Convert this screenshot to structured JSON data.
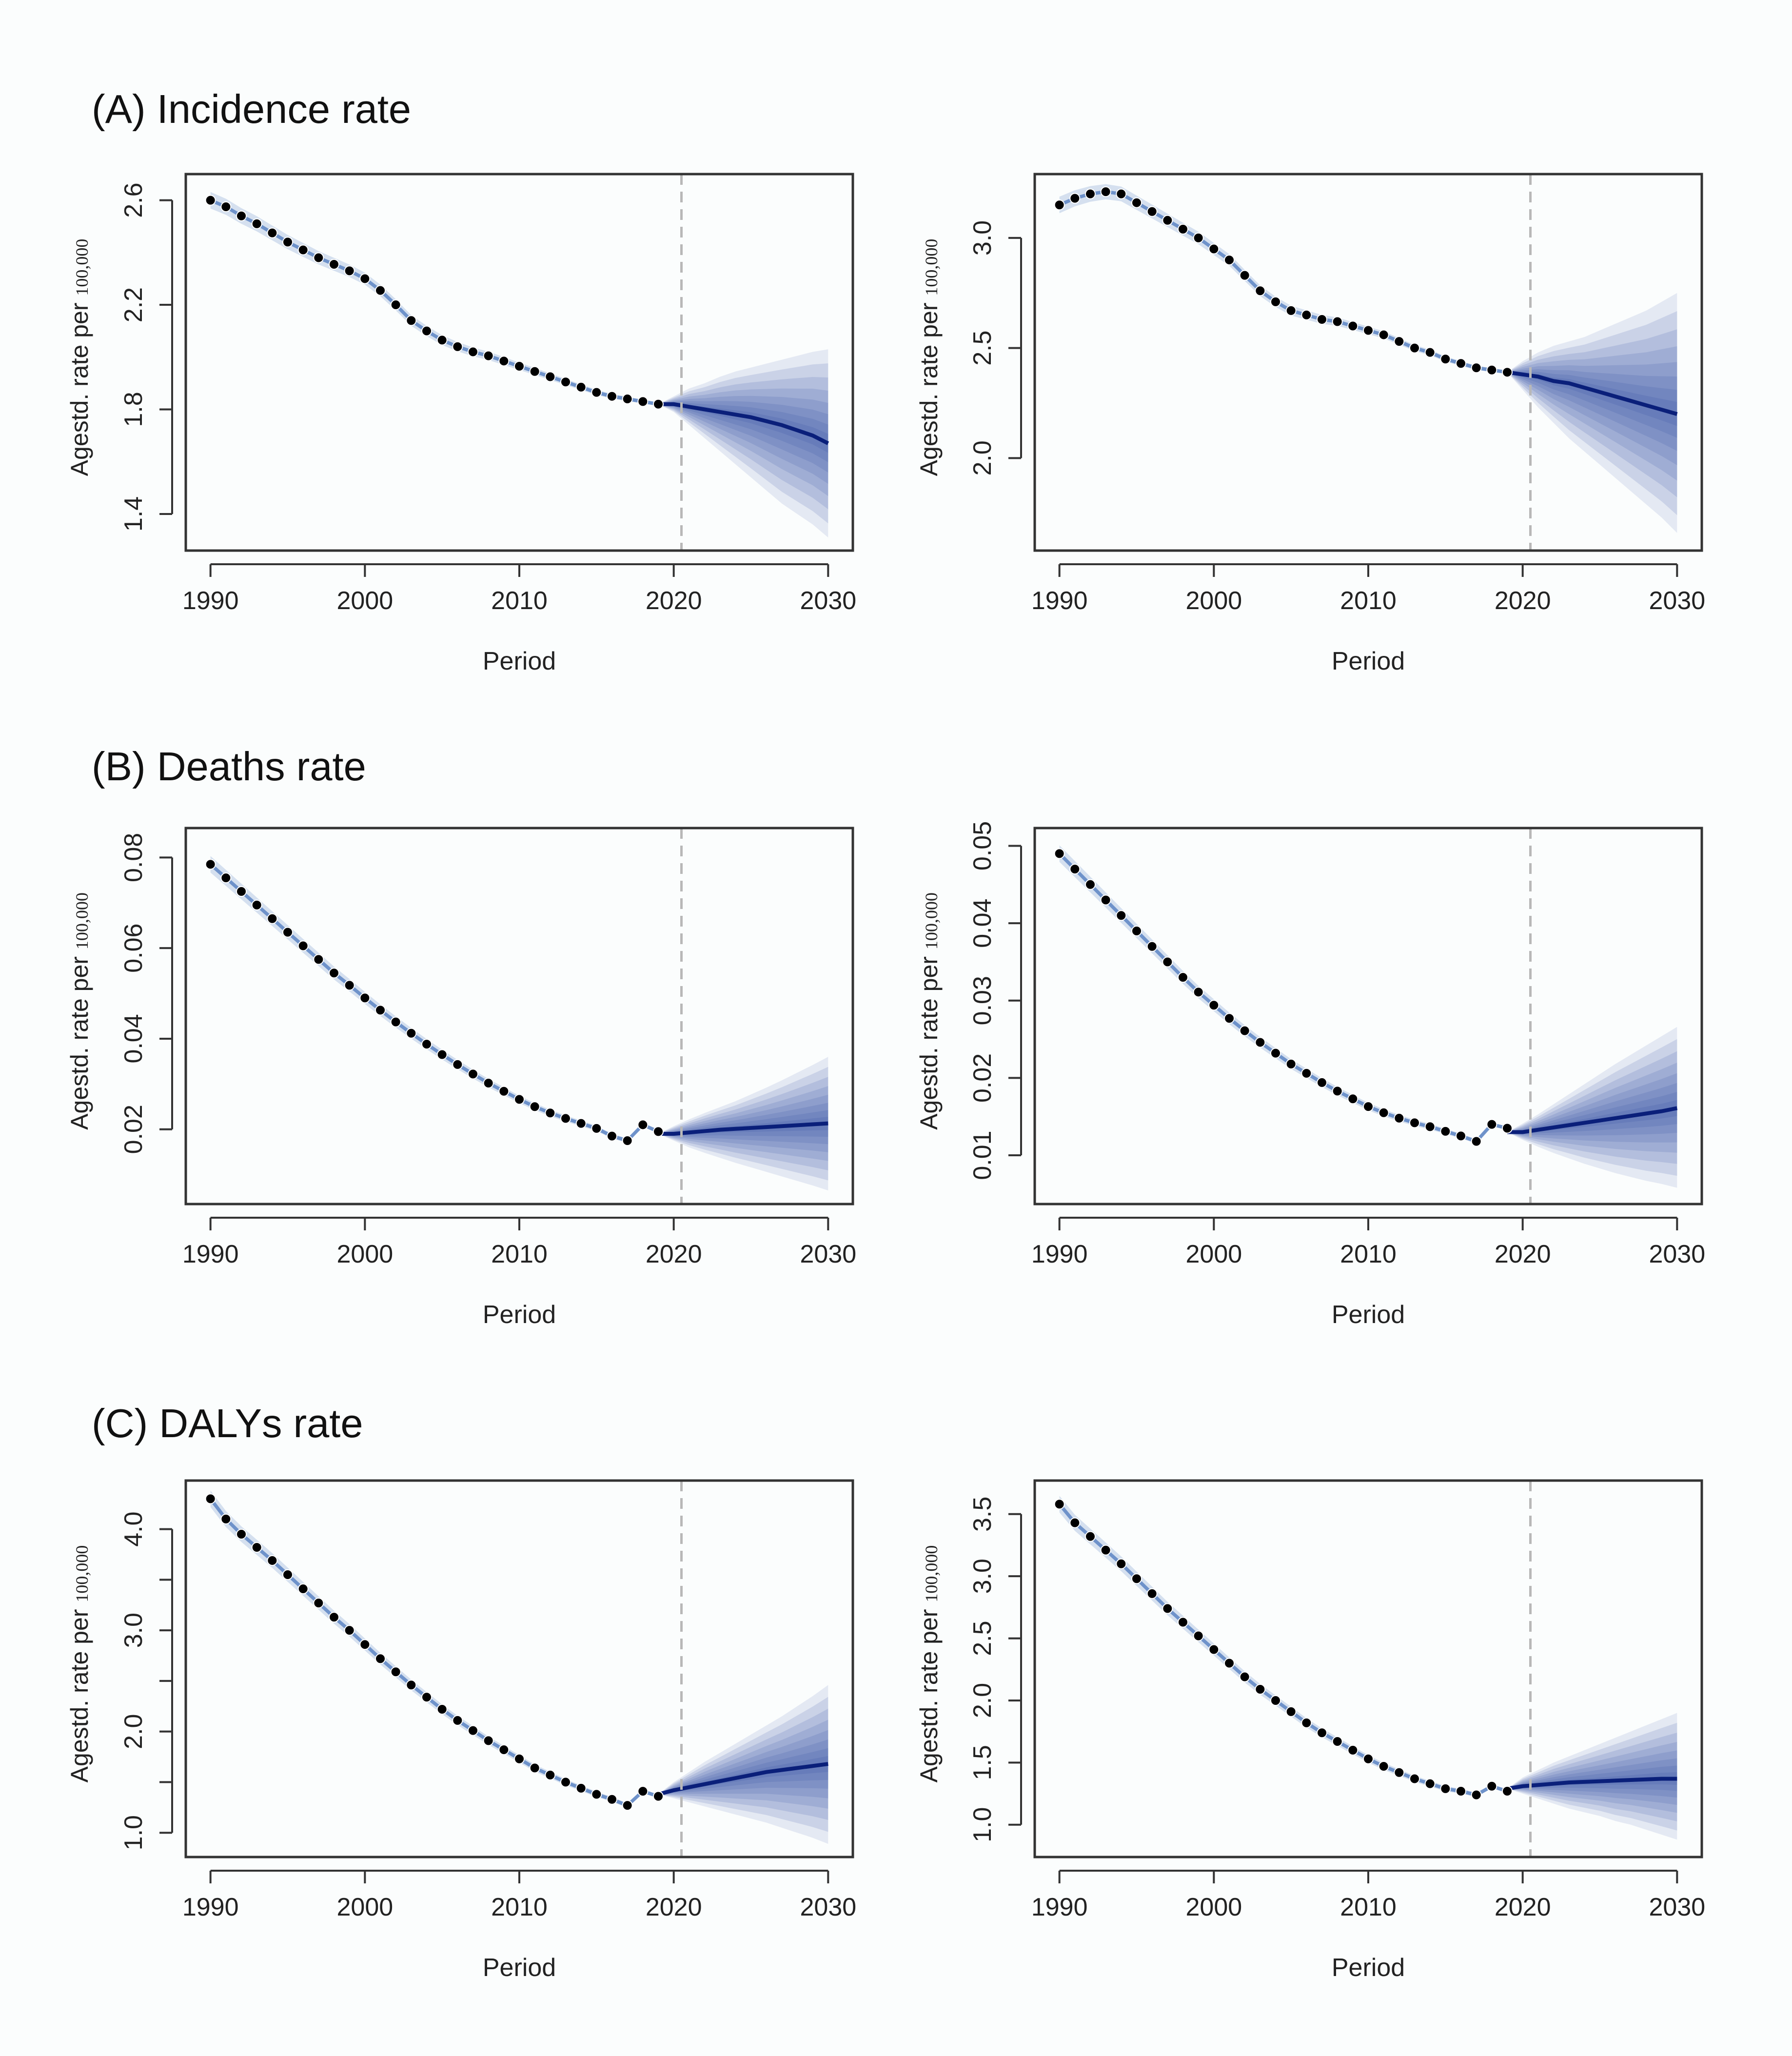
{
  "sections": [
    {
      "title": "(A) Incidence rate"
    },
    {
      "title": "(B) Deaths rate"
    },
    {
      "title": "(C) DALYs rate"
    }
  ],
  "colors": {
    "observed": "#000000",
    "fitted": "#2a5db0",
    "prediction": "#0a1f7a",
    "fan": "#1c3f9a",
    "divider": "#b8b8b8",
    "frame": "#333333"
  },
  "chart_data": [
    {
      "type": "line",
      "panel": "A-left",
      "title": "",
      "xlabel": "Period",
      "ylabel": "Agestd. rate per",
      "ylabel_unit": "100,000",
      "xlim": [
        1988.4,
        2031.6
      ],
      "ylim": [
        1.26,
        2.7
      ],
      "xticks": [
        1990,
        2000,
        2010,
        2020,
        2030
      ],
      "xtick_labels": [
        "1990",
        "2000",
        "2010",
        "2020",
        "2030"
      ],
      "yticks": [
        1.4,
        1.8,
        2.2,
        2.6
      ],
      "ytick_labels": [
        "1.4",
        "1.8",
        "2.2",
        "2.6"
      ],
      "divider_x": 2020.5,
      "observed": {
        "x": [
          1990,
          1991,
          1992,
          1993,
          1994,
          1995,
          1996,
          1997,
          1998,
          1999,
          2000,
          2001,
          2002,
          2003,
          2004,
          2005,
          2006,
          2007,
          2008,
          2009,
          2010,
          2011,
          2012,
          2013,
          2014,
          2015,
          2016,
          2017,
          2018,
          2019
        ],
        "y": [
          2.6,
          2.575,
          2.54,
          2.51,
          2.475,
          2.44,
          2.41,
          2.38,
          2.355,
          2.33,
          2.3,
          2.255,
          2.2,
          2.14,
          2.1,
          2.065,
          2.04,
          2.02,
          2.005,
          1.985,
          1.965,
          1.945,
          1.925,
          1.905,
          1.885,
          1.865,
          1.85,
          1.84,
          1.83,
          1.82
        ]
      },
      "forecast": {
        "x": [
          2019,
          2020,
          2021,
          2022,
          2023,
          2024,
          2025,
          2026,
          2027,
          2028,
          2029,
          2030
        ],
        "mean": [
          1.82,
          1.82,
          1.81,
          1.8,
          1.79,
          1.78,
          1.77,
          1.755,
          1.74,
          1.72,
          1.7,
          1.67
        ],
        "lower": [
          1.82,
          1.79,
          1.74,
          1.69,
          1.64,
          1.59,
          1.54,
          1.49,
          1.44,
          1.4,
          1.36,
          1.31
        ],
        "upper": [
          1.82,
          1.85,
          1.88,
          1.9,
          1.925,
          1.945,
          1.96,
          1.975,
          1.99,
          2.005,
          2.02,
          2.03
        ]
      }
    },
    {
      "type": "line",
      "panel": "A-right",
      "title": "",
      "xlabel": "Period",
      "ylabel": "Agestd. rate per",
      "ylabel_unit": "100,000",
      "xlim": [
        1988.4,
        2031.6
      ],
      "ylim": [
        1.58,
        3.29
      ],
      "xticks": [
        1990,
        2000,
        2010,
        2020,
        2030
      ],
      "xtick_labels": [
        "1990",
        "2000",
        "2010",
        "2020",
        "2030"
      ],
      "yticks": [
        2.0,
        2.5,
        3.0
      ],
      "ytick_labels": [
        "2.0",
        "2.5",
        "3.0"
      ],
      "divider_x": 2020.5,
      "observed": {
        "x": [
          1990,
          1991,
          1992,
          1993,
          1994,
          1995,
          1996,
          1997,
          1998,
          1999,
          2000,
          2001,
          2002,
          2003,
          2004,
          2005,
          2006,
          2007,
          2008,
          2009,
          2010,
          2011,
          2012,
          2013,
          2014,
          2015,
          2016,
          2017,
          2018,
          2019
        ],
        "y": [
          3.15,
          3.18,
          3.2,
          3.21,
          3.2,
          3.16,
          3.12,
          3.08,
          3.04,
          3.0,
          2.95,
          2.9,
          2.83,
          2.76,
          2.71,
          2.67,
          2.65,
          2.63,
          2.62,
          2.6,
          2.58,
          2.56,
          2.53,
          2.5,
          2.48,
          2.45,
          2.43,
          2.41,
          2.4,
          2.39
        ]
      },
      "forecast": {
        "x": [
          2019,
          2020,
          2021,
          2022,
          2023,
          2024,
          2025,
          2026,
          2027,
          2028,
          2029,
          2030
        ],
        "mean": [
          2.39,
          2.38,
          2.37,
          2.35,
          2.34,
          2.32,
          2.3,
          2.28,
          2.26,
          2.24,
          2.22,
          2.2
        ],
        "lower": [
          2.39,
          2.31,
          2.23,
          2.16,
          2.09,
          2.03,
          1.97,
          1.91,
          1.85,
          1.79,
          1.73,
          1.66
        ],
        "upper": [
          2.39,
          2.44,
          2.48,
          2.51,
          2.53,
          2.55,
          2.58,
          2.61,
          2.64,
          2.67,
          2.71,
          2.75
        ]
      }
    },
    {
      "type": "line",
      "panel": "B-left",
      "title": "",
      "xlabel": "Period",
      "ylabel": "Agestd. rate per",
      "ylabel_unit": "100,000",
      "xlim": [
        1988.4,
        2031.6
      ],
      "ylim": [
        0.0035,
        0.0865
      ],
      "xticks": [
        1990,
        2000,
        2010,
        2020,
        2030
      ],
      "xtick_labels": [
        "1990",
        "2000",
        "2010",
        "2020",
        "2030"
      ],
      "yticks": [
        0.02,
        0.04,
        0.06,
        0.08
      ],
      "ytick_labels": [
        "0.02",
        "0.04",
        "0.06",
        "0.08"
      ],
      "divider_x": 2020.5,
      "observed": {
        "x": [
          1990,
          1991,
          1992,
          1993,
          1994,
          1995,
          1996,
          1997,
          1998,
          1999,
          2000,
          2001,
          2002,
          2003,
          2004,
          2005,
          2006,
          2007,
          2008,
          2009,
          2010,
          2011,
          2012,
          2013,
          2014,
          2015,
          2016,
          2017,
          2018,
          2019
        ],
        "y": [
          0.0785,
          0.0755,
          0.0725,
          0.0695,
          0.0665,
          0.0635,
          0.0605,
          0.0575,
          0.0545,
          0.0518,
          0.049,
          0.0463,
          0.0437,
          0.0412,
          0.0388,
          0.0365,
          0.0343,
          0.0322,
          0.0302,
          0.0284,
          0.0266,
          0.025,
          0.0236,
          0.0224,
          0.0213,
          0.0202,
          0.0185,
          0.0175,
          0.021,
          0.0195
        ]
      },
      "forecast": {
        "x": [
          2019,
          2020,
          2021,
          2022,
          2023,
          2024,
          2025,
          2026,
          2027,
          2028,
          2029,
          2030
        ],
        "mean": [
          0.019,
          0.019,
          0.0193,
          0.0196,
          0.0199,
          0.0201,
          0.0203,
          0.0205,
          0.0207,
          0.0209,
          0.0211,
          0.0213
        ],
        "lower": [
          0.019,
          0.0175,
          0.016,
          0.0148,
          0.0137,
          0.0126,
          0.0116,
          0.0106,
          0.0096,
          0.0086,
          0.0076,
          0.0065
        ],
        "upper": [
          0.019,
          0.0207,
          0.0222,
          0.0236,
          0.0249,
          0.0262,
          0.0277,
          0.0292,
          0.0308,
          0.0325,
          0.0342,
          0.036
        ]
      }
    },
    {
      "type": "line",
      "panel": "B-right",
      "title": "",
      "xlabel": "Period",
      "ylabel": "Agestd. rate per",
      "ylabel_unit": "100,000",
      "xlim": [
        1988.4,
        2031.6
      ],
      "ylim": [
        0.0037,
        0.0523
      ],
      "xticks": [
        1990,
        2000,
        2010,
        2020,
        2030
      ],
      "xtick_labels": [
        "1990",
        "2000",
        "2010",
        "2020",
        "2030"
      ],
      "yticks": [
        0.01,
        0.02,
        0.03,
        0.04,
        0.05
      ],
      "ytick_labels": [
        "0.01",
        "0.02",
        "0.03",
        "0.04",
        "0.05"
      ],
      "divider_x": 2020.5,
      "observed": {
        "x": [
          1990,
          1991,
          1992,
          1993,
          1994,
          1995,
          1996,
          1997,
          1998,
          1999,
          2000,
          2001,
          2002,
          2003,
          2004,
          2005,
          2006,
          2007,
          2008,
          2009,
          2010,
          2011,
          2012,
          2013,
          2014,
          2015,
          2016,
          2017,
          2018,
          2019
        ],
        "y": [
          0.049,
          0.047,
          0.045,
          0.043,
          0.041,
          0.039,
          0.037,
          0.035,
          0.033,
          0.0311,
          0.0294,
          0.0277,
          0.0261,
          0.0246,
          0.0232,
          0.0218,
          0.0206,
          0.0194,
          0.0183,
          0.0173,
          0.0163,
          0.0155,
          0.0148,
          0.0142,
          0.0137,
          0.0131,
          0.0125,
          0.0118,
          0.014,
          0.0135
        ]
      },
      "forecast": {
        "x": [
          2019,
          2020,
          2021,
          2022,
          2023,
          2024,
          2025,
          2026,
          2027,
          2028,
          2029,
          2030
        ],
        "mean": [
          0.013,
          0.013,
          0.0133,
          0.0136,
          0.0139,
          0.0142,
          0.0145,
          0.0148,
          0.0151,
          0.0154,
          0.0157,
          0.0161
        ],
        "lower": [
          0.013,
          0.012,
          0.0111,
          0.0103,
          0.0096,
          0.0089,
          0.0083,
          0.0077,
          0.0072,
          0.0067,
          0.0063,
          0.0058
        ],
        "upper": [
          0.013,
          0.0141,
          0.0153,
          0.0166,
          0.0179,
          0.0192,
          0.0205,
          0.0218,
          0.023,
          0.0242,
          0.0254,
          0.0266
        ]
      }
    },
    {
      "type": "line",
      "panel": "C-left",
      "title": "",
      "xlabel": "Period",
      "ylabel": "Agestd. rate per",
      "ylabel_unit": "100,000",
      "xlim": [
        1988.4,
        2031.6
      ],
      "ylim": [
        0.76,
        4.48
      ],
      "xticks": [
        1990,
        2000,
        2010,
        2020,
        2030
      ],
      "xtick_labels": [
        "1990",
        "2000",
        "2010",
        "2020",
        "2030"
      ],
      "yticks": [
        1.0,
        1.5,
        2.0,
        2.5,
        3.0,
        3.5,
        4.0
      ],
      "ytick_labels": [
        "1.0",
        "",
        "2.0",
        "",
        "3.0",
        "",
        "4.0"
      ],
      "divider_x": 2020.5,
      "observed": {
        "x": [
          1990,
          1991,
          1992,
          1993,
          1994,
          1995,
          1996,
          1997,
          1998,
          1999,
          2000,
          2001,
          2002,
          2003,
          2004,
          2005,
          2006,
          2007,
          2008,
          2009,
          2010,
          2011,
          2012,
          2013,
          2014,
          2015,
          2016,
          2017,
          2018,
          2019
        ],
        "y": [
          4.3,
          4.1,
          3.95,
          3.82,
          3.69,
          3.55,
          3.41,
          3.27,
          3.13,
          3.0,
          2.86,
          2.72,
          2.59,
          2.46,
          2.34,
          2.22,
          2.11,
          2.01,
          1.91,
          1.82,
          1.73,
          1.64,
          1.57,
          1.5,
          1.44,
          1.38,
          1.33,
          1.27,
          1.41,
          1.36
        ]
      },
      "forecast": {
        "x": [
          2019,
          2020,
          2021,
          2022,
          2023,
          2024,
          2025,
          2026,
          2027,
          2028,
          2029,
          2030
        ],
        "mean": [
          1.38,
          1.42,
          1.45,
          1.48,
          1.51,
          1.54,
          1.57,
          1.6,
          1.62,
          1.64,
          1.66,
          1.68
        ],
        "lower": [
          1.38,
          1.34,
          1.3,
          1.26,
          1.22,
          1.18,
          1.14,
          1.1,
          1.05,
          1.0,
          0.95,
          0.89
        ],
        "upper": [
          1.38,
          1.5,
          1.6,
          1.7,
          1.79,
          1.88,
          1.97,
          2.06,
          2.15,
          2.25,
          2.35,
          2.46
        ]
      }
    },
    {
      "type": "line",
      "panel": "C-right",
      "title": "",
      "xlabel": "Period",
      "ylabel": "Agestd. rate per",
      "ylabel_unit": "100,000",
      "xlim": [
        1988.4,
        2031.6
      ],
      "ylim": [
        0.74,
        3.77
      ],
      "xticks": [
        1990,
        2000,
        2010,
        2020,
        2030
      ],
      "xtick_labels": [
        "1990",
        "2000",
        "2010",
        "2020",
        "2030"
      ],
      "yticks": [
        1.0,
        1.5,
        2.0,
        2.5,
        3.0,
        3.5
      ],
      "ytick_labels": [
        "1.0",
        "1.5",
        "2.0",
        "2.5",
        "3.0",
        "3.5"
      ],
      "divider_x": 2020.5,
      "observed": {
        "x": [
          1990,
          1991,
          1992,
          1993,
          1994,
          1995,
          1996,
          1997,
          1998,
          1999,
          2000,
          2001,
          2002,
          2003,
          2004,
          2005,
          2006,
          2007,
          2008,
          2009,
          2010,
          2011,
          2012,
          2013,
          2014,
          2015,
          2016,
          2017,
          2018,
          2019
        ],
        "y": [
          3.58,
          3.43,
          3.32,
          3.21,
          3.1,
          2.98,
          2.86,
          2.74,
          2.63,
          2.52,
          2.41,
          2.3,
          2.19,
          2.09,
          2.0,
          1.91,
          1.82,
          1.74,
          1.67,
          1.6,
          1.53,
          1.47,
          1.42,
          1.37,
          1.33,
          1.29,
          1.27,
          1.24,
          1.31,
          1.27
        ]
      },
      "forecast": {
        "x": [
          2019,
          2020,
          2021,
          2022,
          2023,
          2024,
          2025,
          2026,
          2027,
          2028,
          2029,
          2030
        ],
        "mean": [
          1.29,
          1.31,
          1.32,
          1.33,
          1.34,
          1.345,
          1.35,
          1.355,
          1.36,
          1.365,
          1.37,
          1.37
        ],
        "lower": [
          1.29,
          1.25,
          1.21,
          1.17,
          1.13,
          1.1,
          1.07,
          1.03,
          1.0,
          0.96,
          0.92,
          0.88
        ],
        "upper": [
          1.29,
          1.38,
          1.44,
          1.5,
          1.55,
          1.6,
          1.65,
          1.7,
          1.75,
          1.8,
          1.85,
          1.9
        ]
      }
    }
  ]
}
